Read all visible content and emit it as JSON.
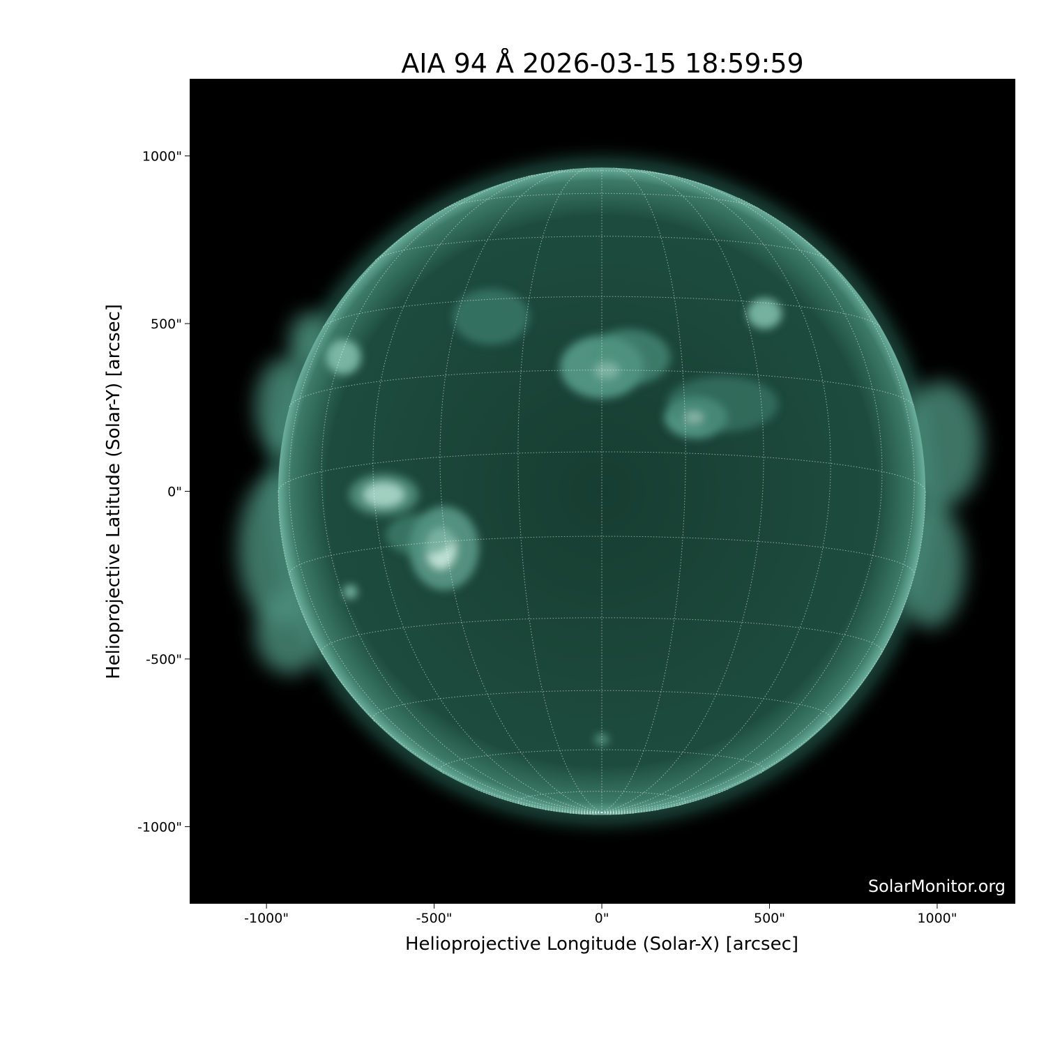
{
  "chart_data": {
    "type": "image",
    "title": "AIA 94 Å 2026-03-15 18:59:59",
    "xlabel": "Helioprojective Longitude (Solar-X) [arcsec]",
    "ylabel": "Helioprojective Latitude (Solar-Y) [arcsec]",
    "xlim": [
      -1229,
      1233
    ],
    "ylim": [
      -1230,
      1230
    ],
    "xticks": [
      {
        "value": -1000,
        "label": "-1000\""
      },
      {
        "value": -500,
        "label": "-500\""
      },
      {
        "value": 0,
        "label": "0\""
      },
      {
        "value": 500,
        "label": "500\""
      },
      {
        "value": 1000,
        "label": "1000\""
      }
    ],
    "yticks": [
      {
        "value": 1000,
        "label": "1000\""
      },
      {
        "value": 500,
        "label": "500\""
      },
      {
        "value": 0,
        "label": "0\""
      },
      {
        "value": -500,
        "label": "-500\""
      },
      {
        "value": -1000,
        "label": "-1000\""
      }
    ],
    "solar_radius_arcsec": 965,
    "grid": "heliographic lat/lon, dotted white",
    "colormap": "sdoaia94",
    "colors": {
      "background": "#000000",
      "disk": "#1c4a3c",
      "limb": "#5fa894",
      "bright": "#e8fff6"
    },
    "watermark": "SolarMonitor.org"
  }
}
